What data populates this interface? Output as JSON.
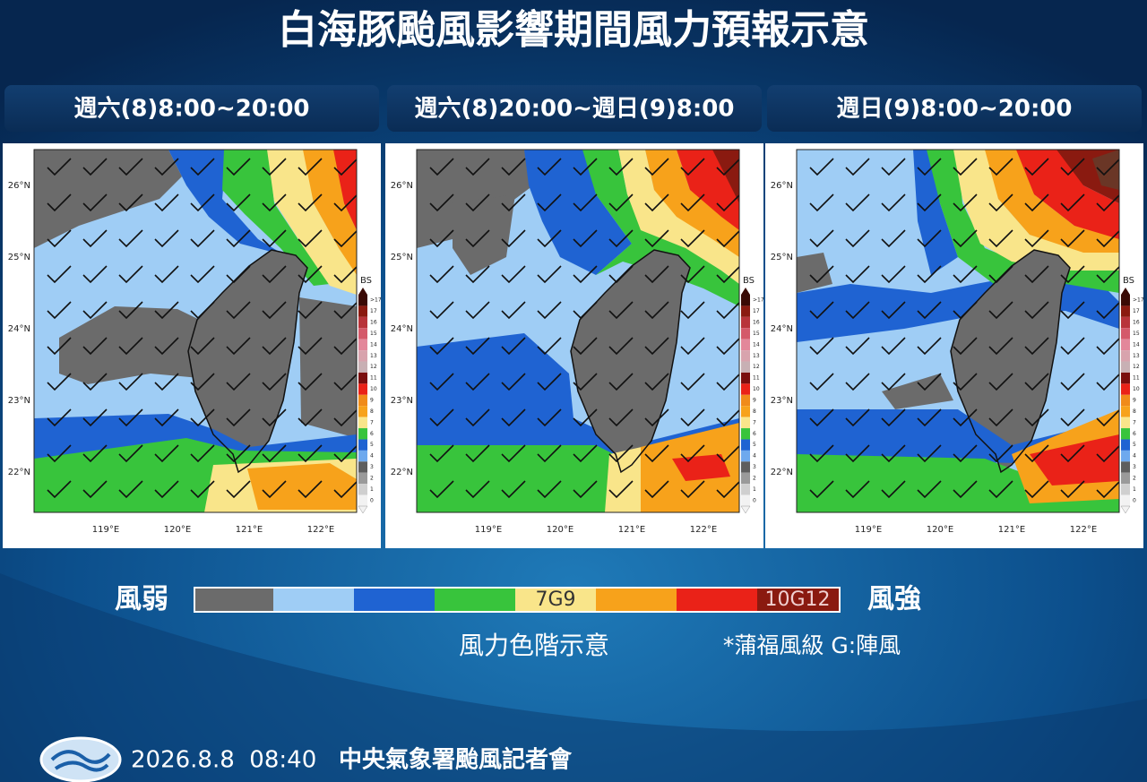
{
  "title": "白海豚颱風影響期間風力預報示意",
  "panels": [
    {
      "header": "週六(8)8:00~20:00"
    },
    {
      "header": "週六(8)20:00~週日(9)8:00"
    },
    {
      "header": "週日(9)8:00~20:00"
    }
  ],
  "map_axes": {
    "lat_labels": [
      "26°N",
      "25°N",
      "24°N",
      "23°N",
      "22°N"
    ],
    "lon_labels": [
      "119°E",
      "120°E",
      "121°E",
      "122°E"
    ]
  },
  "colorbar": {
    "label": "BS",
    "ticks": [
      ">17",
      "17",
      "16",
      "15",
      "14",
      "13",
      "12",
      "11",
      "10",
      "9",
      "8",
      "7",
      "6",
      "5",
      "4",
      "3",
      "2",
      "1",
      "0"
    ]
  },
  "legend": {
    "weak": "風弱",
    "strong": "風強",
    "mid_label": "7G9",
    "high_label": "10G12",
    "caption": "風力色階示意",
    "note": "*蒲福風級 G:陣風"
  },
  "footer": {
    "datetime": "2026.8.8  08:40",
    "event": "中央氣象署颱風記者會"
  }
}
